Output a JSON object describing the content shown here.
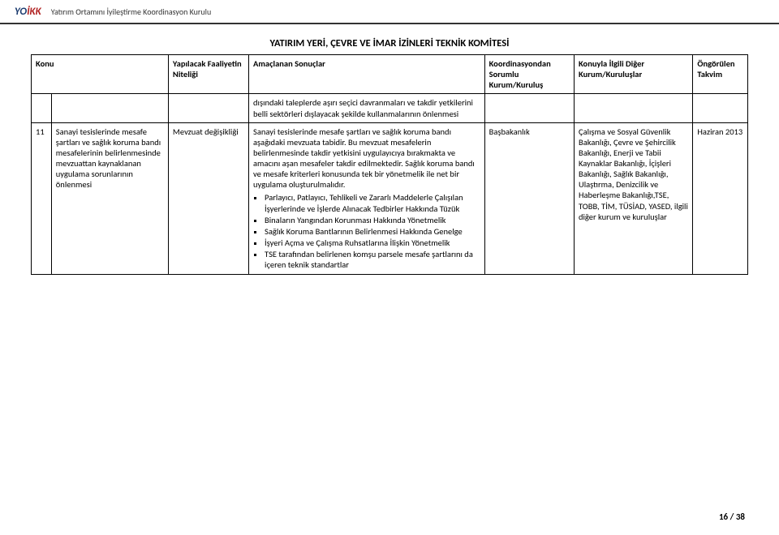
{
  "header": {
    "logo_main": "YO",
    "logo_accent": "İKK",
    "subtitle": "Yatırım Ortamını İyileştirme Koordinasyon Kurulu"
  },
  "doc_title": "YATIRIM YERİ, ÇEVRE VE İMAR İZİNLERİ TEKNİK KOMİTESİ",
  "columns": {
    "c1": "Konu",
    "c2": "Yapılacak Faaliyetin Niteliği",
    "c3": "Amaçlanan Sonuçlar",
    "c4": "Koordinasyondan Sorumlu Kurum/Kuruluş",
    "c5": "Konuyla İlgili Diğer Kurum/Kuruluşlar",
    "c6": "Öngörülen Takvim"
  },
  "row_prev": {
    "c3": "dışındaki taleplerde aşırı seçici davranmaları ve takdir yetkilerini belli sektörleri dışlayacak şekilde kullanmalarının önlenmesi"
  },
  "row11": {
    "num": "11",
    "c1": "Sanayi tesislerinde mesafe şartları ve sağlık koruma bandı mesafelerinin belirlenmesinde mevzuattan kaynaklanan uygulama sorunlarının önlenmesi",
    "c2": "Mevzuat değişikliği",
    "c3_intro": "Sanayi tesislerinde mesafe şartları ve sağlık koruma bandı aşağıdaki mevzuata tabidir. Bu mevzuat mesafelerin belirlenmesinde takdir yetkisini uygulayıcıya bırakmakta ve amacını aşan mesafeler takdir edilmektedir. Sağlık koruma bandı ve mesafe kriterleri konusunda tek bir yönetmelik ile net bir uygulama oluşturulmalıdır.",
    "c3_bullets": [
      "Parlayıcı, Patlayıcı, Tehlikeli ve Zararlı Maddelerle Çalışılan İşyerlerinde ve İşlerde Alınacak Tedbirler Hakkında Tüzük",
      "Binaların Yangından Korunması Hakkında Yönetmelik",
      "Sağlık Koruma Bantlarının Belirlenmesi Hakkında Genelge",
      "İşyeri Açma ve Çalışma Ruhsatlarına İlişkin Yönetmelik",
      "TSE tarafından belirlenen komşu parsele mesafe şartlarını da içeren teknik standartlar"
    ],
    "c4": "Başbakanlık",
    "c5": "Çalışma ve Sosyal Güvenlik Bakanlığı, Çevre ve Şehircilik Bakanlığı, Enerji ve Tabii Kaynaklar Bakanlığı, İçişleri Bakanlığı, Sağlık Bakanlığı, Ulaştırma, Denizcilik ve Haberleşme Bakanlığı,TSE, TOBB, TİM, TÜSİAD, YASED, ilgili diğer kurum ve kuruluşlar",
    "c6": "Haziran 2013"
  },
  "page": {
    "current": "16",
    "sep": " / ",
    "total": "38"
  }
}
